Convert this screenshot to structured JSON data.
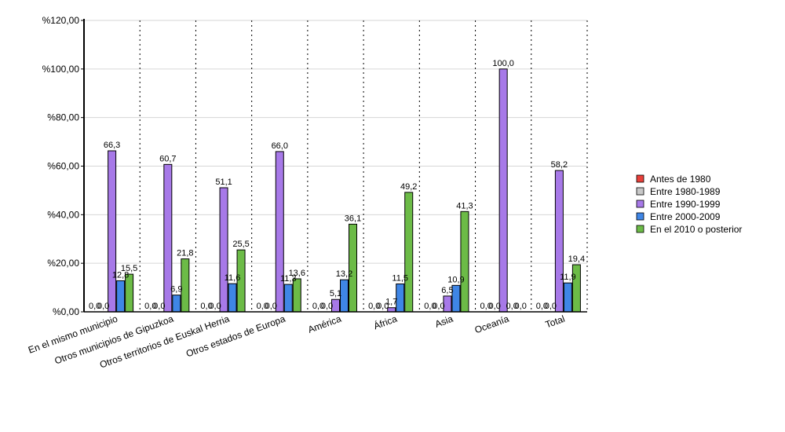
{
  "chart_data": {
    "type": "bar",
    "title": "",
    "xlabel": "",
    "ylabel": "",
    "ylim": [
      0,
      120
    ],
    "y_ticks": [
      "%0,00",
      "%20,00",
      "%40,00",
      "%60,00",
      "%80,00",
      "%100,00",
      "%120,00"
    ],
    "categories": [
      "En el mismo municipio",
      "Otros municipios de Gipuzkoa",
      "Otros territorios de Euskal Herria",
      "Otros estados de Europa",
      "América",
      "África",
      "Asia",
      "Oceanía",
      "Total"
    ],
    "series": [
      {
        "name": "Antes de 1980",
        "color": "#e8403a",
        "values": [
          0.0,
          0.0,
          0.0,
          0.0,
          0.0,
          0.0,
          0.0,
          0.0,
          0.0
        ],
        "labels": [
          "0,0",
          "0,0",
          "0,0",
          "0,0",
          "0,0",
          "0,0",
          "0,0",
          "0,0",
          "0,0"
        ]
      },
      {
        "name": "Entre 1980-1989",
        "color": "#c8c8c8",
        "values": [
          0.0,
          0.0,
          0.0,
          0.0,
          0.0,
          0.0,
          0.0,
          0.0,
          0.0
        ],
        "labels": [
          "0,0",
          "0,0",
          "0,0",
          "0,0",
          "0,0",
          "0,0",
          "0,0",
          "0,0",
          "0,0"
        ]
      },
      {
        "name": "Entre 1990-1999",
        "color": "#a779e8",
        "values": [
          66.3,
          60.7,
          51.1,
          66.0,
          5.1,
          1.7,
          6.5,
          100.0,
          58.2
        ],
        "labels": [
          "66,3",
          "60,7",
          "51,1",
          "66,0",
          "5,1",
          "1,7",
          "6,5",
          "100,0",
          "58,2"
        ]
      },
      {
        "name": "Entre 2000-2009",
        "color": "#3f86e6",
        "values": [
          12.8,
          6.9,
          11.6,
          11.3,
          13.2,
          11.5,
          10.9,
          0.0,
          11.9
        ],
        "labels": [
          "12,8",
          "6,9",
          "11,6",
          "11,3",
          "13,2",
          "11,5",
          "10,9",
          "0,0",
          "11,9"
        ]
      },
      {
        "name": "En el 2010 o posterior",
        "color": "#6cbb47",
        "values": [
          15.5,
          21.8,
          25.5,
          13.6,
          36.1,
          49.2,
          41.3,
          0.0,
          19.4
        ],
        "labels": [
          "15,5",
          "21,8",
          "25,5",
          "13,6",
          "36,1",
          "49,2",
          "41,3",
          "0,0",
          "19,4"
        ]
      }
    ],
    "grid": true,
    "legend_position": "right"
  }
}
